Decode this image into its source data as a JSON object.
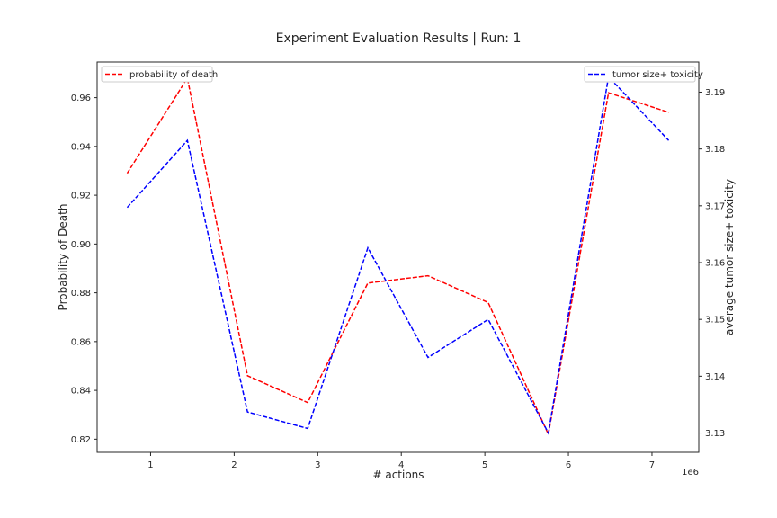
{
  "chart_data": {
    "type": "line",
    "title": "Experiment Evaluation Results | Run: 1",
    "xlabel": "# actions",
    "x_offset_label": "1e6",
    "x": [
      0.72,
      1.44,
      2.16,
      2.88,
      3.6,
      4.32,
      5.04,
      5.76,
      6.48,
      7.2
    ],
    "xlim": [
      0.36,
      7.56
    ],
    "xticks": [
      1,
      2,
      3,
      4,
      5,
      6,
      7
    ],
    "y_left": {
      "label": "Probability of Death",
      "lim": [
        0.8146,
        0.9746
      ],
      "ticks": [
        0.82,
        0.84,
        0.86,
        0.88,
        0.9,
        0.92,
        0.94,
        0.96
      ],
      "tick_labels": [
        "0.82",
        "0.84",
        "0.86",
        "0.88",
        "0.90",
        "0.92",
        "0.94",
        "0.96"
      ]
    },
    "y_right": {
      "label": "average tumor size+ toxicity",
      "lim": [
        3.1266,
        3.1953
      ],
      "ticks": [
        3.13,
        3.14,
        3.15,
        3.16,
        3.17,
        3.18,
        3.19
      ],
      "tick_labels": [
        "3.13",
        "3.14",
        "3.15",
        "3.16",
        "3.17",
        "3.18",
        "3.19"
      ]
    },
    "series": [
      {
        "name": "probability of death",
        "axis": "left",
        "color": "#ff0000",
        "style": "dashed",
        "values": [
          0.929,
          0.968,
          0.846,
          0.835,
          0.884,
          0.887,
          0.876,
          0.822,
          0.962,
          0.954
        ]
      },
      {
        "name": "tumor size+ toxicity",
        "axis": "right",
        "color": "#0000ff",
        "style": "dashed",
        "values": [
          3.1697,
          3.1815,
          3.1337,
          3.1308,
          3.1626,
          3.1433,
          3.15,
          3.13,
          3.1927,
          3.1815
        ]
      }
    ],
    "legends": [
      {
        "series": 0,
        "placement": "top-left"
      },
      {
        "series": 1,
        "placement": "top-right"
      }
    ],
    "grid": false
  }
}
